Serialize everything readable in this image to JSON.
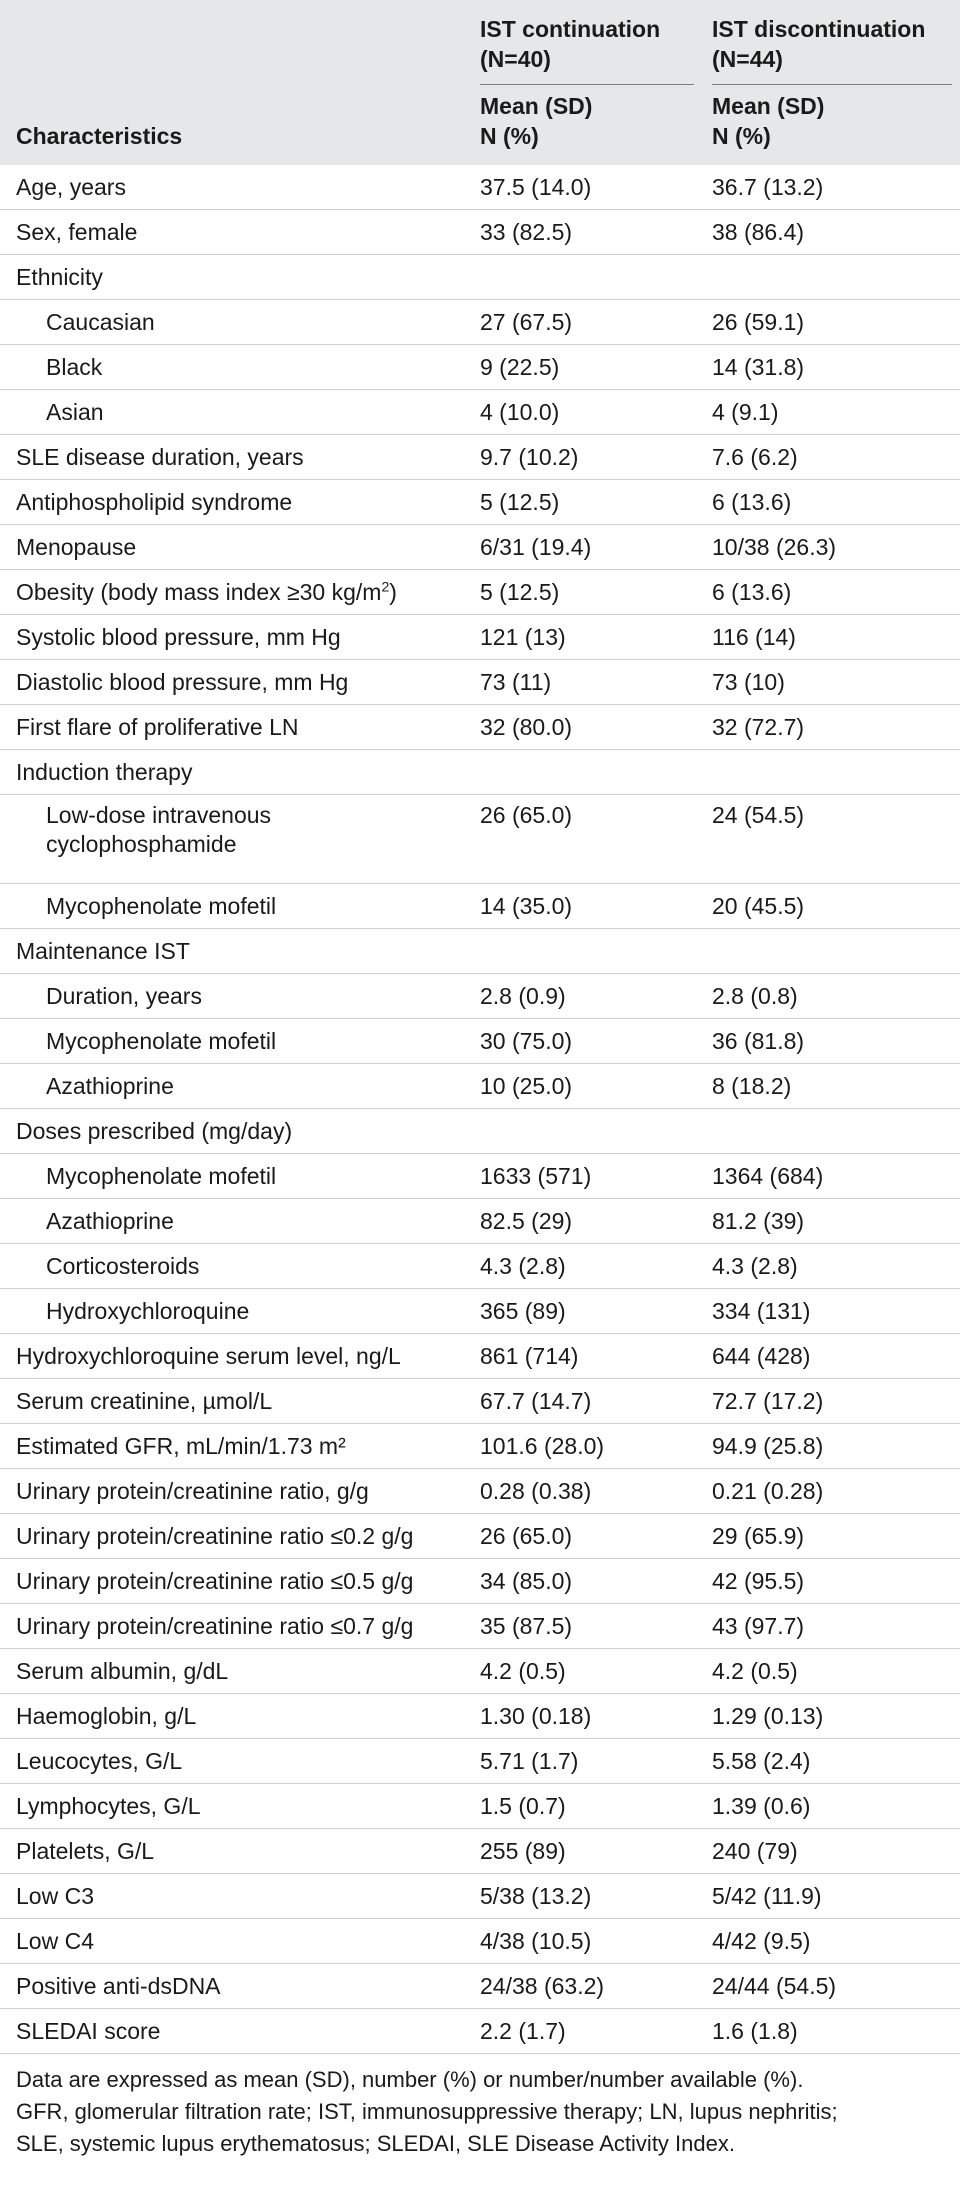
{
  "header": {
    "characteristics": "Characteristics",
    "group1_line1": "IST continuation",
    "group1_line2": "(N=40)",
    "group2_line1": "IST discontinuation",
    "group2_line2": "(N=44)",
    "stat_line1": "Mean (SD)",
    "stat_line2": "N (%)"
  },
  "rows": [
    {
      "label": "Age, years",
      "indent": false,
      "c1": "37.5 (14.0)",
      "c2": "36.7 (13.2)"
    },
    {
      "label": "Sex, female",
      "indent": false,
      "c1": "33 (82.5)",
      "c2": "38 (86.4)"
    },
    {
      "label": "Ethnicity",
      "indent": false,
      "c1": "",
      "c2": ""
    },
    {
      "label": "Caucasian",
      "indent": true,
      "c1": "27 (67.5)",
      "c2": "26 (59.1)"
    },
    {
      "label": "Black",
      "indent": true,
      "c1": "9 (22.5)",
      "c2": "14 (31.8)"
    },
    {
      "label": "Asian",
      "indent": true,
      "c1": "4 (10.0)",
      "c2": "4 (9.1)"
    },
    {
      "label": "SLE disease duration, years",
      "indent": false,
      "c1": "9.7 (10.2)",
      "c2": "7.6 (6.2)"
    },
    {
      "label": "Antiphospholipid syndrome",
      "indent": false,
      "c1": "5 (12.5)",
      "c2": "6 (13.6)"
    },
    {
      "label": "Menopause",
      "indent": false,
      "c1": "6/31 (19.4)",
      "c2": "10/38 (26.3)"
    },
    {
      "label": "Obesity (body mass index ≥30 kg/m",
      "sup": "2",
      "label_end": ")",
      "indent": false,
      "c1": "5 (12.5)",
      "c2": "6 (13.6)"
    },
    {
      "label": "Systolic blood pressure, mm Hg",
      "indent": false,
      "c1": "121 (13)",
      "c2": "116 (14)"
    },
    {
      "label": "Diastolic blood pressure, mm Hg",
      "indent": false,
      "c1": "73 (11)",
      "c2": "73 (10)"
    },
    {
      "label": "First flare of proliferative LN",
      "indent": false,
      "c1": "32 (80.0)",
      "c2": "32 (72.7)"
    },
    {
      "label": "Induction therapy",
      "indent": false,
      "c1": "",
      "c2": ""
    },
    {
      "label": "Low-dose intravenous",
      "label2": "cyclophosphamide",
      "indent": true,
      "tall": true,
      "c1": "26 (65.0)",
      "c2": "24 (54.5)"
    },
    {
      "label": "Mycophenolate mofetil",
      "indent": true,
      "c1": "14 (35.0)",
      "c2": "20 (45.5)"
    },
    {
      "label": "Maintenance IST",
      "indent": false,
      "c1": "",
      "c2": ""
    },
    {
      "label": "Duration, years",
      "indent": true,
      "c1": "2.8 (0.9)",
      "c2": "2.8 (0.8)"
    },
    {
      "label": "Mycophenolate mofetil",
      "indent": true,
      "c1": "30 (75.0)",
      "c2": "36 (81.8)"
    },
    {
      "label": "Azathioprine",
      "indent": true,
      "c1": "10 (25.0)",
      "c2": "8 (18.2)"
    },
    {
      "label": "Doses prescribed (mg/day)",
      "indent": false,
      "c1": "",
      "c2": ""
    },
    {
      "label": "Mycophenolate mofetil",
      "indent": true,
      "c1": "1633 (571)",
      "c2": "1364 (684)"
    },
    {
      "label": "Azathioprine",
      "indent": true,
      "c1": "82.5 (29)",
      "c2": "81.2 (39)"
    },
    {
      "label": "Corticosteroids",
      "indent": true,
      "c1": "4.3 (2.8)",
      "c2": "4.3 (2.8)"
    },
    {
      "label": "Hydroxychloroquine",
      "indent": true,
      "c1": "365 (89)",
      "c2": "334 (131)"
    },
    {
      "label": "Hydroxychloroquine serum level, ng/L",
      "indent": false,
      "c1": "861 (714)",
      "c2": "644 (428)"
    },
    {
      "label": "Serum creatinine, µmol/L",
      "indent": false,
      "c1": "67.7 (14.7)",
      "c2": "72.7 (17.2)"
    },
    {
      "label": "Estimated GFR, mL/min/1.73 m²",
      "indent": false,
      "c1": "101.6 (28.0)",
      "c2": "94.9 (25.8)"
    },
    {
      "label": "Urinary protein/creatinine ratio, g/g",
      "indent": false,
      "c1": "0.28 (0.38)",
      "c2": "0.21 (0.28)"
    },
    {
      "label": "Urinary protein/creatinine ratio ≤0.2 g/g",
      "indent": false,
      "c1": "26 (65.0)",
      "c2": "29 (65.9)"
    },
    {
      "label": "Urinary protein/creatinine ratio ≤0.5 g/g",
      "indent": false,
      "c1": "34 (85.0)",
      "c2": "42 (95.5)"
    },
    {
      "label": "Urinary protein/creatinine ratio ≤0.7 g/g",
      "indent": false,
      "c1": "35 (87.5)",
      "c2": "43 (97.7)"
    },
    {
      "label": "Serum albumin, g/dL",
      "indent": false,
      "c1": "4.2 (0.5)",
      "c2": "4.2 (0.5)"
    },
    {
      "label": "Haemoglobin, g/L",
      "indent": false,
      "c1": "1.30 (0.18)",
      "c2": "1.29 (0.13)"
    },
    {
      "label": "Leucocytes, G/L",
      "indent": false,
      "c1": "5.71 (1.7)",
      "c2": "5.58 (2.4)"
    },
    {
      "label": "Lymphocytes, G/L",
      "indent": false,
      "c1": "1.5 (0.7)",
      "c2": "1.39 (0.6)"
    },
    {
      "label": "Platelets, G/L",
      "indent": false,
      "c1": "255 (89)",
      "c2": "240 (79)"
    },
    {
      "label": "Low C3",
      "indent": false,
      "c1": "5/38 (13.2)",
      "c2": "5/42 (11.9)"
    },
    {
      "label": "Low C4",
      "indent": false,
      "c1": "4/38 (10.5)",
      "c2": "4/42 (9.5)"
    },
    {
      "label": "Positive anti-dsDNA",
      "indent": false,
      "c1": "24/38 (63.2)",
      "c2": "24/44 (54.5)"
    },
    {
      "label": "SLEDAI score",
      "indent": false,
      "c1": "2.2 (1.7)",
      "c2": "1.6 (1.8)"
    }
  ],
  "footnote": {
    "line1": "Data are expressed as mean (SD), number (%) or number/number available (%).",
    "line2": "GFR, glomerular filtration rate; IST, immunosuppressive therapy; LN, lupus nephritis;",
    "line3": "SLE, systemic lupus erythematosus; SLEDAI, SLE Disease Activity Index."
  }
}
